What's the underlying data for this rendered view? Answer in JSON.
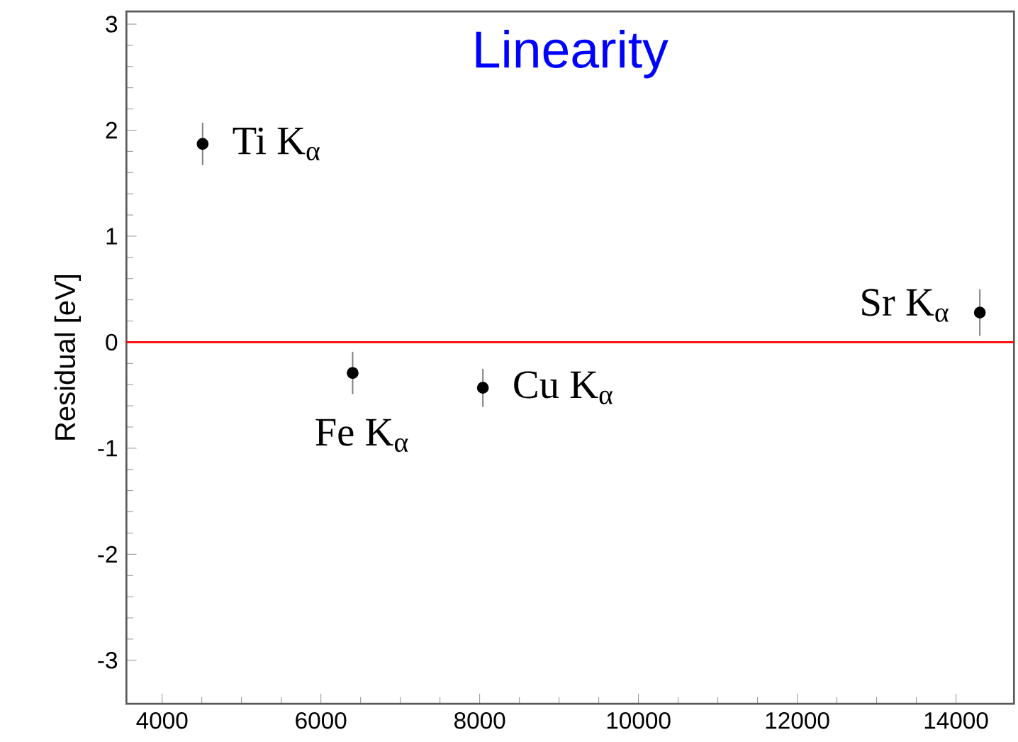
{
  "chart_data": {
    "type": "scatter",
    "title": "Linearity",
    "ylabel": "Residual [eV]",
    "x": [
      4510,
      6400,
      8040,
      14300
    ],
    "series": [
      {
        "color": "#000000",
        "values": [
          1.87,
          -0.29,
          -0.43,
          0.28
        ],
        "errors": [
          0.2,
          0.2,
          0.18,
          0.22
        ]
      }
    ],
    "xlim": [
      3550,
      14730
    ],
    "ylim": [
      -3.41,
      3.12
    ],
    "xticks": [
      4000,
      6000,
      8000,
      10000,
      12000,
      14000
    ],
    "yticks": [
      -3,
      -2,
      -1,
      0,
      1,
      2,
      3
    ],
    "ref_lines": [
      {
        "axis": "y",
        "value": 0,
        "color": "#ff0000"
      }
    ],
    "annotations": [
      {
        "text": "Ti K$_{α}$",
        "x": 4510,
        "y": 1.87
      },
      {
        "text": "Fe K$_{α}$",
        "x": 6400,
        "y": -0.29
      },
      {
        "text": "Cu K$_{α}$",
        "x": 8040,
        "y": -0.43
      },
      {
        "text": "Sr K$_{α}$",
        "x": 14300,
        "y": 0.28
      }
    ]
  }
}
